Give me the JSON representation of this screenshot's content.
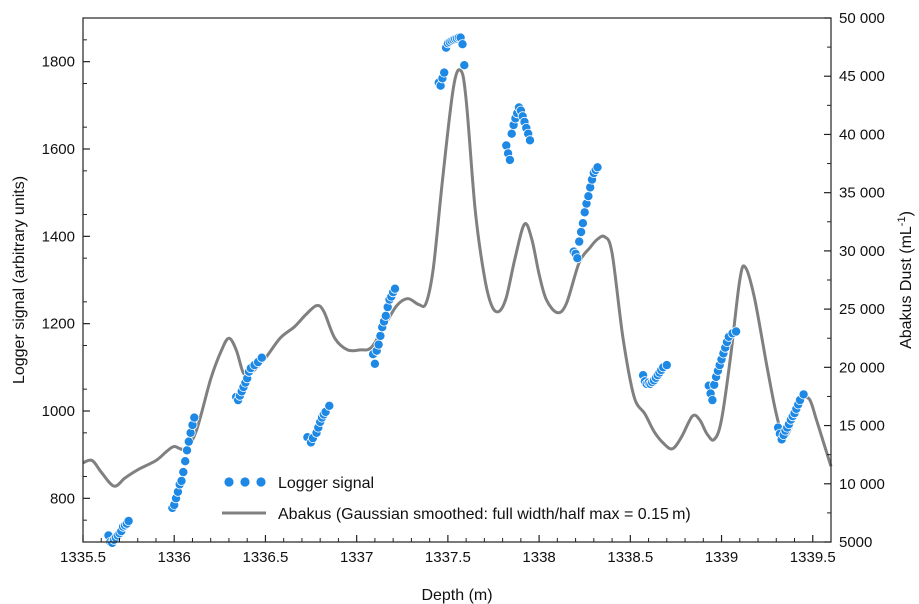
{
  "chart_data": {
    "type": "line+scatter",
    "xlabel": "Depth (m)",
    "ylabel_left": "Logger signal (arbitrary units)",
    "ylabel_right_main": "Abakus Dust (mL",
    "ylabel_right_sup": "-1",
    "ylabel_right_end": ")",
    "xlim": [
      1335.5,
      1339.6
    ],
    "ylim_left": [
      700,
      1900
    ],
    "ylim_right": [
      5000,
      50000
    ],
    "x_ticks": [
      1335.5,
      1336,
      1336.5,
      1337,
      1337.5,
      1338,
      1338.5,
      1339,
      1339.5
    ],
    "x_tick_labels": [
      "1335.5",
      "1336",
      "1336.5",
      "1337",
      "1337.5",
      "1338",
      "1338.5",
      "1339",
      "1339.5"
    ],
    "y_left_ticks": [
      800,
      1000,
      1200,
      1400,
      1600,
      1800
    ],
    "y_left_tick_labels": [
      "800",
      "1000",
      "1200",
      "1400",
      "1600",
      "1800"
    ],
    "y_right_ticks": [
      5000,
      10000,
      15000,
      20000,
      25000,
      30000,
      35000,
      40000,
      45000,
      50000
    ],
    "y_right_tick_labels": [
      "5000",
      "10 000",
      "15 000",
      "20 000",
      "25 000",
      "30 000",
      "35 000",
      "40 000",
      "45 000",
      "50 000"
    ],
    "legend_position": "bottom-left",
    "grid": false,
    "series": [
      {
        "name": "Logger signal",
        "kind": "scatter",
        "axis": "left",
        "color": "#1e88e5",
        "points": [
          [
            1335.64,
            715
          ],
          [
            1335.65,
            700
          ],
          [
            1335.66,
            698
          ],
          [
            1335.67,
            705
          ],
          [
            1335.68,
            710
          ],
          [
            1335.69,
            715
          ],
          [
            1335.7,
            720
          ],
          [
            1335.71,
            725
          ],
          [
            1335.72,
            735
          ],
          [
            1335.73,
            738
          ],
          [
            1335.74,
            742
          ],
          [
            1335.75,
            748
          ],
          [
            1335.99,
            778
          ],
          [
            1336.0,
            785
          ],
          [
            1336.01,
            800
          ],
          [
            1336.02,
            815
          ],
          [
            1336.03,
            832
          ],
          [
            1336.04,
            840
          ],
          [
            1336.05,
            860
          ],
          [
            1336.06,
            885
          ],
          [
            1336.07,
            910
          ],
          [
            1336.08,
            930
          ],
          [
            1336.09,
            950
          ],
          [
            1336.1,
            968
          ],
          [
            1336.11,
            985
          ],
          [
            1336.34,
            1032
          ],
          [
            1336.35,
            1025
          ],
          [
            1336.36,
            1035
          ],
          [
            1336.37,
            1045
          ],
          [
            1336.38,
            1055
          ],
          [
            1336.39,
            1065
          ],
          [
            1336.4,
            1075
          ],
          [
            1336.41,
            1090
          ],
          [
            1336.42,
            1098
          ],
          [
            1336.44,
            1105
          ],
          [
            1336.46,
            1112
          ],
          [
            1336.48,
            1122
          ],
          [
            1336.73,
            940
          ],
          [
            1336.75,
            928
          ],
          [
            1336.76,
            938
          ],
          [
            1336.78,
            950
          ],
          [
            1336.79,
            962
          ],
          [
            1336.8,
            975
          ],
          [
            1336.81,
            985
          ],
          [
            1336.82,
            992
          ],
          [
            1336.83,
            998
          ],
          [
            1336.85,
            1012
          ],
          [
            1337.09,
            1130
          ],
          [
            1337.1,
            1108
          ],
          [
            1337.11,
            1138
          ],
          [
            1337.12,
            1152
          ],
          [
            1337.13,
            1172
          ],
          [
            1337.14,
            1192
          ],
          [
            1337.15,
            1205
          ],
          [
            1337.16,
            1218
          ],
          [
            1337.17,
            1238
          ],
          [
            1337.18,
            1255
          ],
          [
            1337.19,
            1262
          ],
          [
            1337.2,
            1272
          ],
          [
            1337.21,
            1280
          ],
          [
            1337.45,
            1752
          ],
          [
            1337.46,
            1745
          ],
          [
            1337.47,
            1762
          ],
          [
            1337.48,
            1775
          ],
          [
            1337.49,
            1832
          ],
          [
            1337.5,
            1842
          ],
          [
            1337.51,
            1845
          ],
          [
            1337.52,
            1848
          ],
          [
            1337.53,
            1850
          ],
          [
            1337.54,
            1852
          ],
          [
            1337.55,
            1853
          ],
          [
            1337.56,
            1855
          ],
          [
            1337.57,
            1855
          ],
          [
            1337.58,
            1840
          ],
          [
            1337.59,
            1792
          ],
          [
            1337.82,
            1608
          ],
          [
            1337.83,
            1590
          ],
          [
            1337.84,
            1575
          ],
          [
            1337.85,
            1635
          ],
          [
            1337.86,
            1655
          ],
          [
            1337.87,
            1670
          ],
          [
            1337.88,
            1682
          ],
          [
            1337.89,
            1695
          ],
          [
            1337.9,
            1688
          ],
          [
            1337.91,
            1675
          ],
          [
            1337.92,
            1662
          ],
          [
            1337.93,
            1648
          ],
          [
            1337.94,
            1635
          ],
          [
            1337.95,
            1620
          ],
          [
            1338.19,
            1365
          ],
          [
            1338.2,
            1360
          ],
          [
            1338.21,
            1350
          ],
          [
            1338.22,
            1388
          ],
          [
            1338.23,
            1410
          ],
          [
            1338.24,
            1430
          ],
          [
            1338.25,
            1455
          ],
          [
            1338.26,
            1475
          ],
          [
            1338.27,
            1492
          ],
          [
            1338.28,
            1512
          ],
          [
            1338.29,
            1530
          ],
          [
            1338.3,
            1545
          ],
          [
            1338.31,
            1552
          ],
          [
            1338.32,
            1558
          ],
          [
            1338.57,
            1082
          ],
          [
            1338.58,
            1068
          ],
          [
            1338.59,
            1062
          ],
          [
            1338.6,
            1065
          ],
          [
            1338.61,
            1062
          ],
          [
            1338.62,
            1066
          ],
          [
            1338.63,
            1070
          ],
          [
            1338.64,
            1076
          ],
          [
            1338.65,
            1082
          ],
          [
            1338.66,
            1088
          ],
          [
            1338.67,
            1094
          ],
          [
            1338.68,
            1100
          ],
          [
            1338.7,
            1105
          ],
          [
            1338.93,
            1058
          ],
          [
            1338.94,
            1040
          ],
          [
            1338.95,
            1025
          ],
          [
            1338.96,
            1060
          ],
          [
            1338.97,
            1078
          ],
          [
            1338.98,
            1092
          ],
          [
            1338.99,
            1105
          ],
          [
            1339.0,
            1118
          ],
          [
            1339.01,
            1132
          ],
          [
            1339.02,
            1145
          ],
          [
            1339.03,
            1158
          ],
          [
            1339.04,
            1170
          ],
          [
            1339.06,
            1178
          ],
          [
            1339.08,
            1182
          ],
          [
            1339.31,
            962
          ],
          [
            1339.32,
            948
          ],
          [
            1339.33,
            935
          ],
          [
            1339.34,
            945
          ],
          [
            1339.35,
            955
          ],
          [
            1339.36,
            962
          ],
          [
            1339.37,
            970
          ],
          [
            1339.38,
            980
          ],
          [
            1339.39,
            988
          ],
          [
            1339.4,
            995
          ],
          [
            1339.41,
            1005
          ],
          [
            1339.42,
            1015
          ],
          [
            1339.43,
            1025
          ],
          [
            1339.45,
            1038
          ]
        ]
      },
      {
        "name": "Abakus (Gaussian smoothed: full width/half max = 0.15 m)",
        "kind": "line",
        "axis": "right",
        "color": "#808080",
        "points": [
          [
            1335.5,
            11800
          ],
          [
            1335.55,
            12000
          ],
          [
            1335.6,
            11000
          ],
          [
            1335.67,
            9800
          ],
          [
            1335.73,
            10500
          ],
          [
            1335.8,
            11200
          ],
          [
            1335.9,
            12000
          ],
          [
            1335.96,
            12800
          ],
          [
            1336.0,
            13200
          ],
          [
            1336.06,
            13000
          ],
          [
            1336.12,
            14500
          ],
          [
            1336.2,
            19000
          ],
          [
            1336.26,
            21500
          ],
          [
            1336.3,
            22500
          ],
          [
            1336.34,
            21500
          ],
          [
            1336.38,
            19500
          ],
          [
            1336.42,
            19500
          ],
          [
            1336.5,
            20800
          ],
          [
            1336.58,
            22500
          ],
          [
            1336.66,
            23500
          ],
          [
            1336.72,
            24500
          ],
          [
            1336.78,
            25300
          ],
          [
            1336.82,
            24800
          ],
          [
            1336.88,
            22500
          ],
          [
            1336.95,
            21500
          ],
          [
            1337.02,
            21500
          ],
          [
            1337.08,
            21700
          ],
          [
            1337.15,
            23500
          ],
          [
            1337.22,
            25300
          ],
          [
            1337.28,
            25900
          ],
          [
            1337.34,
            25400
          ],
          [
            1337.38,
            25500
          ],
          [
            1337.42,
            28500
          ],
          [
            1337.47,
            36000
          ],
          [
            1337.53,
            44000
          ],
          [
            1337.57,
            45500
          ],
          [
            1337.6,
            43000
          ],
          [
            1337.65,
            33500
          ],
          [
            1337.7,
            27800
          ],
          [
            1337.74,
            25300
          ],
          [
            1337.78,
            24800
          ],
          [
            1337.82,
            26000
          ],
          [
            1337.87,
            29500
          ],
          [
            1337.92,
            32300
          ],
          [
            1337.96,
            31000
          ],
          [
            1338.0,
            28000
          ],
          [
            1338.04,
            25800
          ],
          [
            1338.1,
            24700
          ],
          [
            1338.15,
            25500
          ],
          [
            1338.22,
            29000
          ],
          [
            1338.28,
            30300
          ],
          [
            1338.32,
            31000
          ],
          [
            1338.36,
            31200
          ],
          [
            1338.4,
            29800
          ],
          [
            1338.46,
            22500
          ],
          [
            1338.52,
            17500
          ],
          [
            1338.58,
            16000
          ],
          [
            1338.63,
            14500
          ],
          [
            1338.68,
            13500
          ],
          [
            1338.73,
            13000
          ],
          [
            1338.78,
            14000
          ],
          [
            1338.84,
            15800
          ],
          [
            1338.88,
            15500
          ],
          [
            1338.92,
            14300
          ],
          [
            1338.96,
            13800
          ],
          [
            1339.0,
            15500
          ],
          [
            1339.05,
            21000
          ],
          [
            1339.1,
            27500
          ],
          [
            1339.13,
            28600
          ],
          [
            1339.18,
            26000
          ],
          [
            1339.25,
            20000
          ],
          [
            1339.3,
            16000
          ],
          [
            1339.34,
            14000
          ],
          [
            1339.38,
            14800
          ],
          [
            1339.43,
            17000
          ],
          [
            1339.48,
            17300
          ],
          [
            1339.52,
            15500
          ],
          [
            1339.56,
            13500
          ],
          [
            1339.6,
            11500
          ]
        ]
      }
    ]
  }
}
